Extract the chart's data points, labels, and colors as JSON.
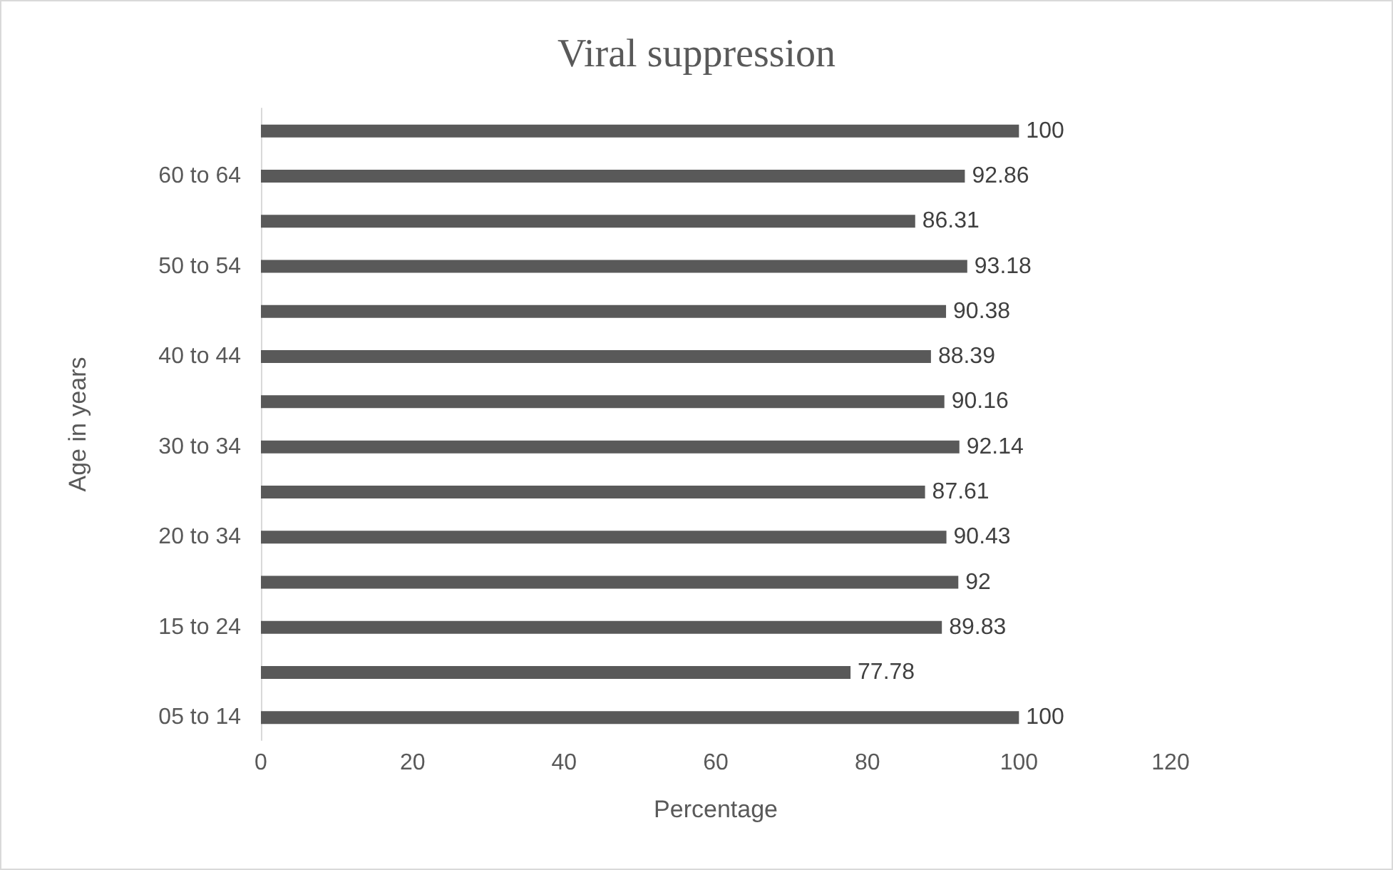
{
  "chart_data": {
    "type": "bar",
    "orientation": "horizontal",
    "title": "Viral suppression",
    "xlabel": "Percentage",
    "ylabel": "Age in years",
    "categories": [
      null,
      "60 to 64",
      null,
      "50 to 54",
      null,
      "40 to 44",
      null,
      "30 to 34",
      null,
      "20 to 34",
      null,
      "15 to 24",
      null,
      "05 to 14"
    ],
    "values": [
      100,
      92.86,
      86.31,
      93.18,
      90.38,
      88.39,
      90.16,
      92.14,
      87.61,
      90.43,
      92,
      89.83,
      77.78,
      100
    ],
    "color": "#595959",
    "data_labels": true,
    "xlim": [
      0,
      120
    ],
    "xticks": [
      0,
      20,
      40,
      60,
      80,
      100,
      120
    ]
  }
}
